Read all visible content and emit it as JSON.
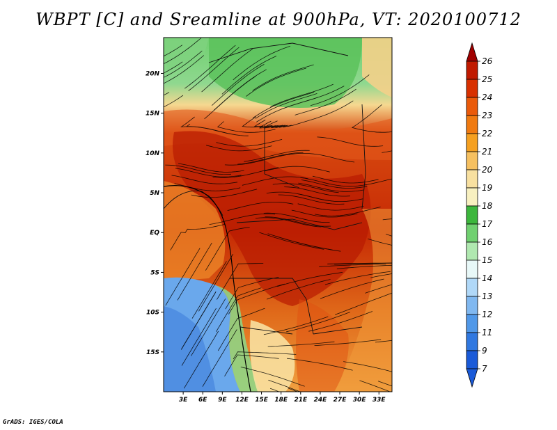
{
  "title": "WBPT [C] and Sreamline at 900hPa, VT: 2020100712",
  "credit": "GrADS: IGES/COLA",
  "map": {
    "lat_labels": [
      "20N",
      "15N",
      "10N",
      "5N",
      "EQ",
      "5S",
      "10S",
      "15S"
    ],
    "lon_labels": [
      "3E",
      "6E",
      "9E",
      "12E",
      "15E",
      "18E",
      "21E",
      "24E",
      "27E",
      "30E",
      "33E"
    ],
    "lon_range": [
      0,
      35
    ],
    "lat_range": [
      -20,
      24.5
    ]
  },
  "colorbar": {
    "levels": [
      "26",
      "25",
      "24",
      "23",
      "22",
      "21",
      "20",
      "19",
      "18",
      "17",
      "16",
      "15",
      "14",
      "13",
      "12",
      "11",
      "9",
      "7"
    ],
    "colors": [
      "#a00000",
      "#c01a00",
      "#d83000",
      "#ea5a0a",
      "#f07a10",
      "#f5a020",
      "#f6c060",
      "#f8e0a0",
      "#f8f0c0",
      "#3cb63c",
      "#70d070",
      "#b0e8b0",
      "#e8f8f8",
      "#b0d8f8",
      "#80b8f0",
      "#5098e8",
      "#3078e0",
      "#1a5ad8"
    ]
  }
}
